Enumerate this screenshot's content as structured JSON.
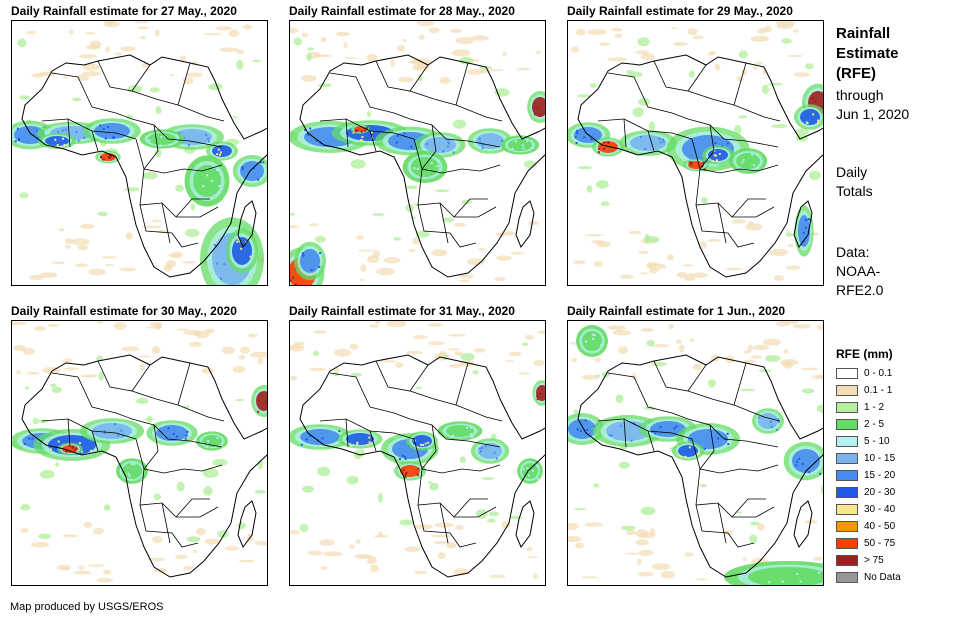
{
  "panels": [
    {
      "title": "Daily Rainfall estimate for 27 May., 2020",
      "date": "27 May., 2020"
    },
    {
      "title": "Daily Rainfall estimate for 28 May., 2020",
      "date": "28 May., 2020"
    },
    {
      "title": "Daily Rainfall estimate for 29 May., 2020",
      "date": "29 May., 2020"
    },
    {
      "title": "Daily Rainfall estimate for 30 May., 2020",
      "date": "30 May., 2020"
    },
    {
      "title": "Daily Rainfall estimate for 31 May., 2020",
      "date": "31 May., 2020"
    },
    {
      "title": "Daily Rainfall estimate for 1 Jun., 2020",
      "date": "1 Jun., 2020"
    }
  ],
  "sidebar": {
    "title_line1": "Rainfall",
    "title_line2": "Estimate",
    "title_line3": "(RFE)",
    "through_line1": "through",
    "through_line2": "Jun 1, 2020",
    "totals_line1": "Daily",
    "totals_line2": "Totals",
    "data_line1": "Data:",
    "data_line2": "NOAA-",
    "data_line3": "RFE2.0"
  },
  "legend": {
    "title": "RFE (mm)",
    "items": [
      {
        "label": "0 - 0.1",
        "color": "#ffffff"
      },
      {
        "label": "0.1 - 1",
        "color": "#f2dcb4"
      },
      {
        "label": "1 - 2",
        "color": "#b4f0a0"
      },
      {
        "label": "2 - 5",
        "color": "#64dc64"
      },
      {
        "label": "5 - 10",
        "color": "#b4f0f0"
      },
      {
        "label": "10 - 15",
        "color": "#78b4f0"
      },
      {
        "label": "15 - 20",
        "color": "#468cf0"
      },
      {
        "label": "20 - 30",
        "color": "#1e5ae6"
      },
      {
        "label": "30 - 40",
        "color": "#fae68c"
      },
      {
        "label": "40 - 50",
        "color": "#fa9600"
      },
      {
        "label": "50 - 75",
        "color": "#fa3c00"
      },
      {
        "label": "> 75",
        "color": "#a01e1e"
      },
      {
        "label": "No Data",
        "color": "#969696"
      }
    ]
  },
  "credit": "Map produced by USGS/EROS"
}
